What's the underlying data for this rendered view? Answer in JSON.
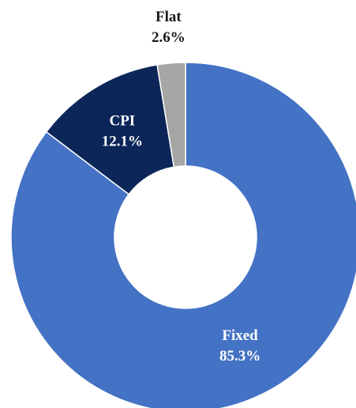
{
  "chart_data": {
    "type": "donut",
    "categories": [
      "Fixed",
      "CPI",
      "Flat"
    ],
    "values": [
      85.3,
      12.1,
      2.6
    ],
    "value_labels": [
      "85.3%",
      "12.1%",
      "2.6%"
    ],
    "colors": [
      "#4472c4",
      "#0c2659",
      "#a6a6a6"
    ]
  }
}
